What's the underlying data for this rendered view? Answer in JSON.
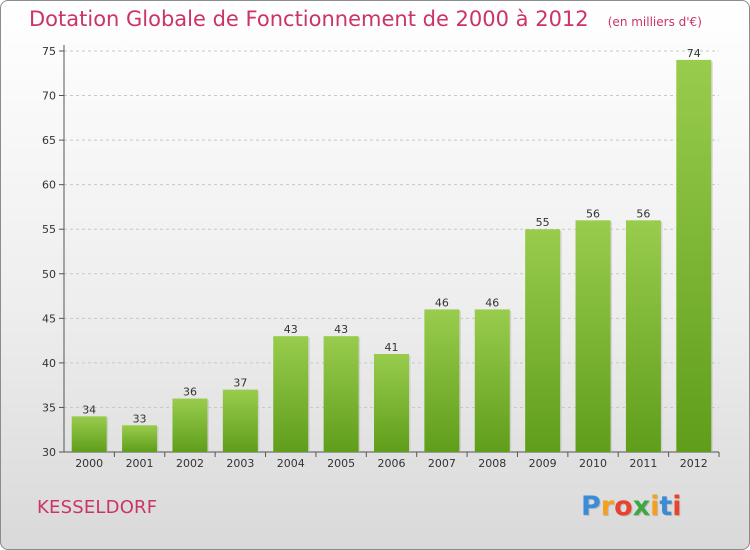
{
  "chart_data": {
    "type": "bar",
    "title": "Dotation Globale de Fonctionnement de 2000 à 2012",
    "unit": "(en milliers d'€)",
    "categories": [
      "2000",
      "2001",
      "2002",
      "2003",
      "2004",
      "2005",
      "2006",
      "2007",
      "2008",
      "2009",
      "2010",
      "2011",
      "2012"
    ],
    "values": [
      34,
      33,
      36,
      37,
      43,
      43,
      41,
      46,
      46,
      55,
      56,
      56,
      74
    ],
    "ylim": [
      30,
      75
    ],
    "yticks": [
      30,
      35,
      40,
      45,
      50,
      55,
      60,
      65,
      70,
      75
    ],
    "grid": true,
    "bar_color_top": "#99cc4d",
    "bar_color_bottom": "#5f9e1a"
  },
  "place_name": "KESSELDORF",
  "logo": {
    "letters": [
      "P",
      "r",
      "o",
      "x",
      "i",
      "t",
      "i"
    ],
    "colors": [
      "#3b8bd6",
      "#f2a01d",
      "#e7442f",
      "#3ea642",
      "#f2a01d",
      "#3b8bd6",
      "#e7442f"
    ]
  },
  "colors": {
    "accent": "#cc3366"
  }
}
